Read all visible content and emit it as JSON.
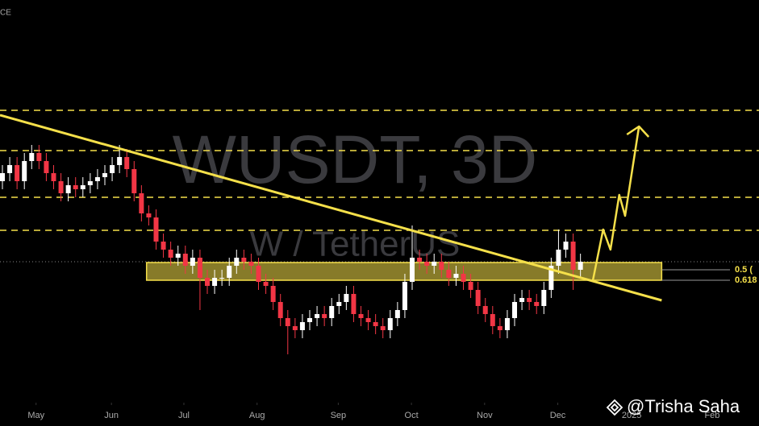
{
  "chart_data": {
    "type": "candlestick",
    "header_text": "CE",
    "watermark": "WUSDT, 3D",
    "watermark_subtitle": "W / TetherUS",
    "attribution": "@Trisha Saha",
    "xlim": [
      -0.33,
      103.4
    ],
    "ylim": [
      0,
      100
    ],
    "xticks": [
      {
        "value": 4.6,
        "label": "May"
      },
      {
        "value": 14.9,
        "label": "Jun"
      },
      {
        "value": 24.8,
        "label": "Jul"
      },
      {
        "value": 34.8,
        "label": "Aug"
      },
      {
        "value": 45.9,
        "label": "Sep"
      },
      {
        "value": 55.9,
        "label": "Oct"
      },
      {
        "value": 65.9,
        "label": "Nov"
      },
      {
        "value": 75.9,
        "label": "Dec"
      },
      {
        "value": 86,
        "label": "2025"
      },
      {
        "value": 97,
        "label": "Feb"
      }
    ],
    "up_color": "#ffffff",
    "down_color": "#f23645",
    "open": [
      55,
      57,
      59,
      55,
      60,
      62,
      60,
      57,
      55,
      52,
      54,
      53,
      54,
      55,
      56,
      57,
      59,
      61,
      58,
      52,
      47,
      46,
      40,
      38,
      36,
      37,
      34,
      36,
      31,
      29,
      31,
      31,
      34,
      36,
      35,
      34,
      30,
      29,
      25,
      21,
      19,
      18,
      20,
      21,
      22,
      21,
      24,
      25,
      27,
      22,
      21,
      20,
      19,
      18,
      21,
      23,
      30,
      36,
      35,
      34,
      35,
      33,
      31,
      32,
      30,
      28,
      24,
      22,
      19,
      18,
      21,
      25,
      26,
      25,
      24,
      28,
      34,
      38,
      40,
      33
    ],
    "high": [
      59,
      61,
      61,
      62,
      64,
      64,
      62,
      59,
      57,
      56,
      56,
      56,
      57,
      58,
      59,
      61,
      64,
      63,
      60,
      54,
      49,
      48,
      42,
      40,
      39,
      39,
      38,
      38,
      33,
      33,
      33,
      36,
      38,
      38,
      37,
      36,
      32,
      31,
      27,
      23,
      21,
      22,
      23,
      24,
      24,
      26,
      27,
      29,
      29,
      24,
      23,
      22,
      21,
      23,
      25,
      32,
      44,
      38,
      37,
      37,
      37,
      35,
      34,
      34,
      32,
      30,
      26,
      24,
      21,
      23,
      27,
      28,
      28,
      27,
      30,
      36,
      43,
      42,
      42,
      37
    ],
    "low": [
      53,
      55,
      53,
      53,
      58,
      58,
      55,
      53,
      50,
      50,
      51,
      51,
      52,
      53,
      54,
      55,
      57,
      56,
      50,
      45,
      44,
      38,
      36,
      34,
      34,
      32,
      32,
      23,
      27,
      27,
      29,
      29,
      32,
      33,
      32,
      28,
      27,
      23,
      19,
      12,
      16,
      16,
      18,
      19,
      19,
      19,
      22,
      23,
      20,
      19,
      18,
      17,
      16,
      16,
      19,
      21,
      28,
      33,
      32,
      32,
      31,
      29,
      29,
      28,
      26,
      22,
      20,
      17,
      16,
      16,
      19,
      23,
      23,
      22,
      22,
      26,
      32,
      36,
      28,
      31
    ],
    "close": [
      57,
      59,
      55,
      60,
      62,
      60,
      57,
      55,
      52,
      54,
      53,
      54,
      55,
      56,
      57,
      59,
      61,
      58,
      52,
      47,
      46,
      40,
      38,
      36,
      37,
      34,
      36,
      31,
      29,
      31,
      31,
      34,
      36,
      35,
      34,
      30,
      29,
      25,
      21,
      19,
      18,
      20,
      21,
      22,
      21,
      24,
      25,
      27,
      22,
      21,
      20,
      19,
      18,
      21,
      23,
      30,
      36,
      35,
      34,
      35,
      33,
      31,
      32,
      30,
      28,
      24,
      22,
      19,
      18,
      21,
      25,
      26,
      25,
      24,
      28,
      34,
      38,
      40,
      33,
      35
    ],
    "levels": [
      72.6,
      62.6,
      51,
      42.8
    ],
    "level_color": "#f5e04a",
    "last_price": 35,
    "zone": {
      "x": [
        19.7,
        90.1
      ],
      "y": [
        30.4,
        34.8
      ],
      "color": "#f5e04a"
    },
    "fib_labels": [
      {
        "label": "0.5 (",
        "value": 33
      },
      {
        "label": "0.618",
        "value": 30.4
      }
    ],
    "trendline": {
      "x": [
        -0.33,
        90.1
      ],
      "y": [
        71.4,
        25.4
      ],
      "color": "#f5e04a"
    },
    "projection": {
      "x": [
        80.7,
        82.1,
        83.1,
        84.3,
        85.1,
        87
      ],
      "y": [
        30.4,
        43,
        38,
        51.6,
        46.4,
        68.6
      ],
      "color": "#f5e04a"
    }
  }
}
